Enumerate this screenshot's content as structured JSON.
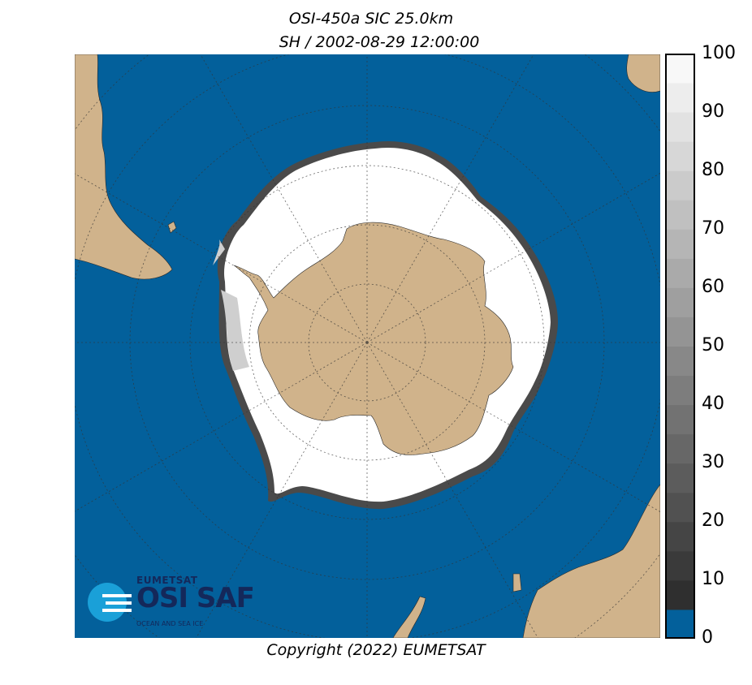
{
  "title": {
    "line1": "OSI-450a SIC 25.0km",
    "line2": "SH / 2002-08-29 12:00:00"
  },
  "copyright": "Copyright (2022)  EUMETSAT",
  "logo": {
    "top": "EUMETSAT",
    "main": "OSI SAF",
    "sub": "OCEAN AND SEA ICE"
  },
  "colorbar": {
    "ticks": [
      "0",
      "10",
      "20",
      "30",
      "40",
      "50",
      "60",
      "70",
      "80",
      "90",
      "100"
    ],
    "min": 0,
    "max": 100,
    "step": 5
  },
  "colors": {
    "ocean": "#03609b",
    "land": "#d0b38b",
    "ice_high": "#ffffff",
    "ice_low": "#2f2f2f",
    "logo_accent": "#1aa0d8",
    "logo_text": "#14285a"
  },
  "map": {
    "projection": "south-polar-stereographic",
    "graticule": "dotted",
    "hemisphere": "SH"
  }
}
